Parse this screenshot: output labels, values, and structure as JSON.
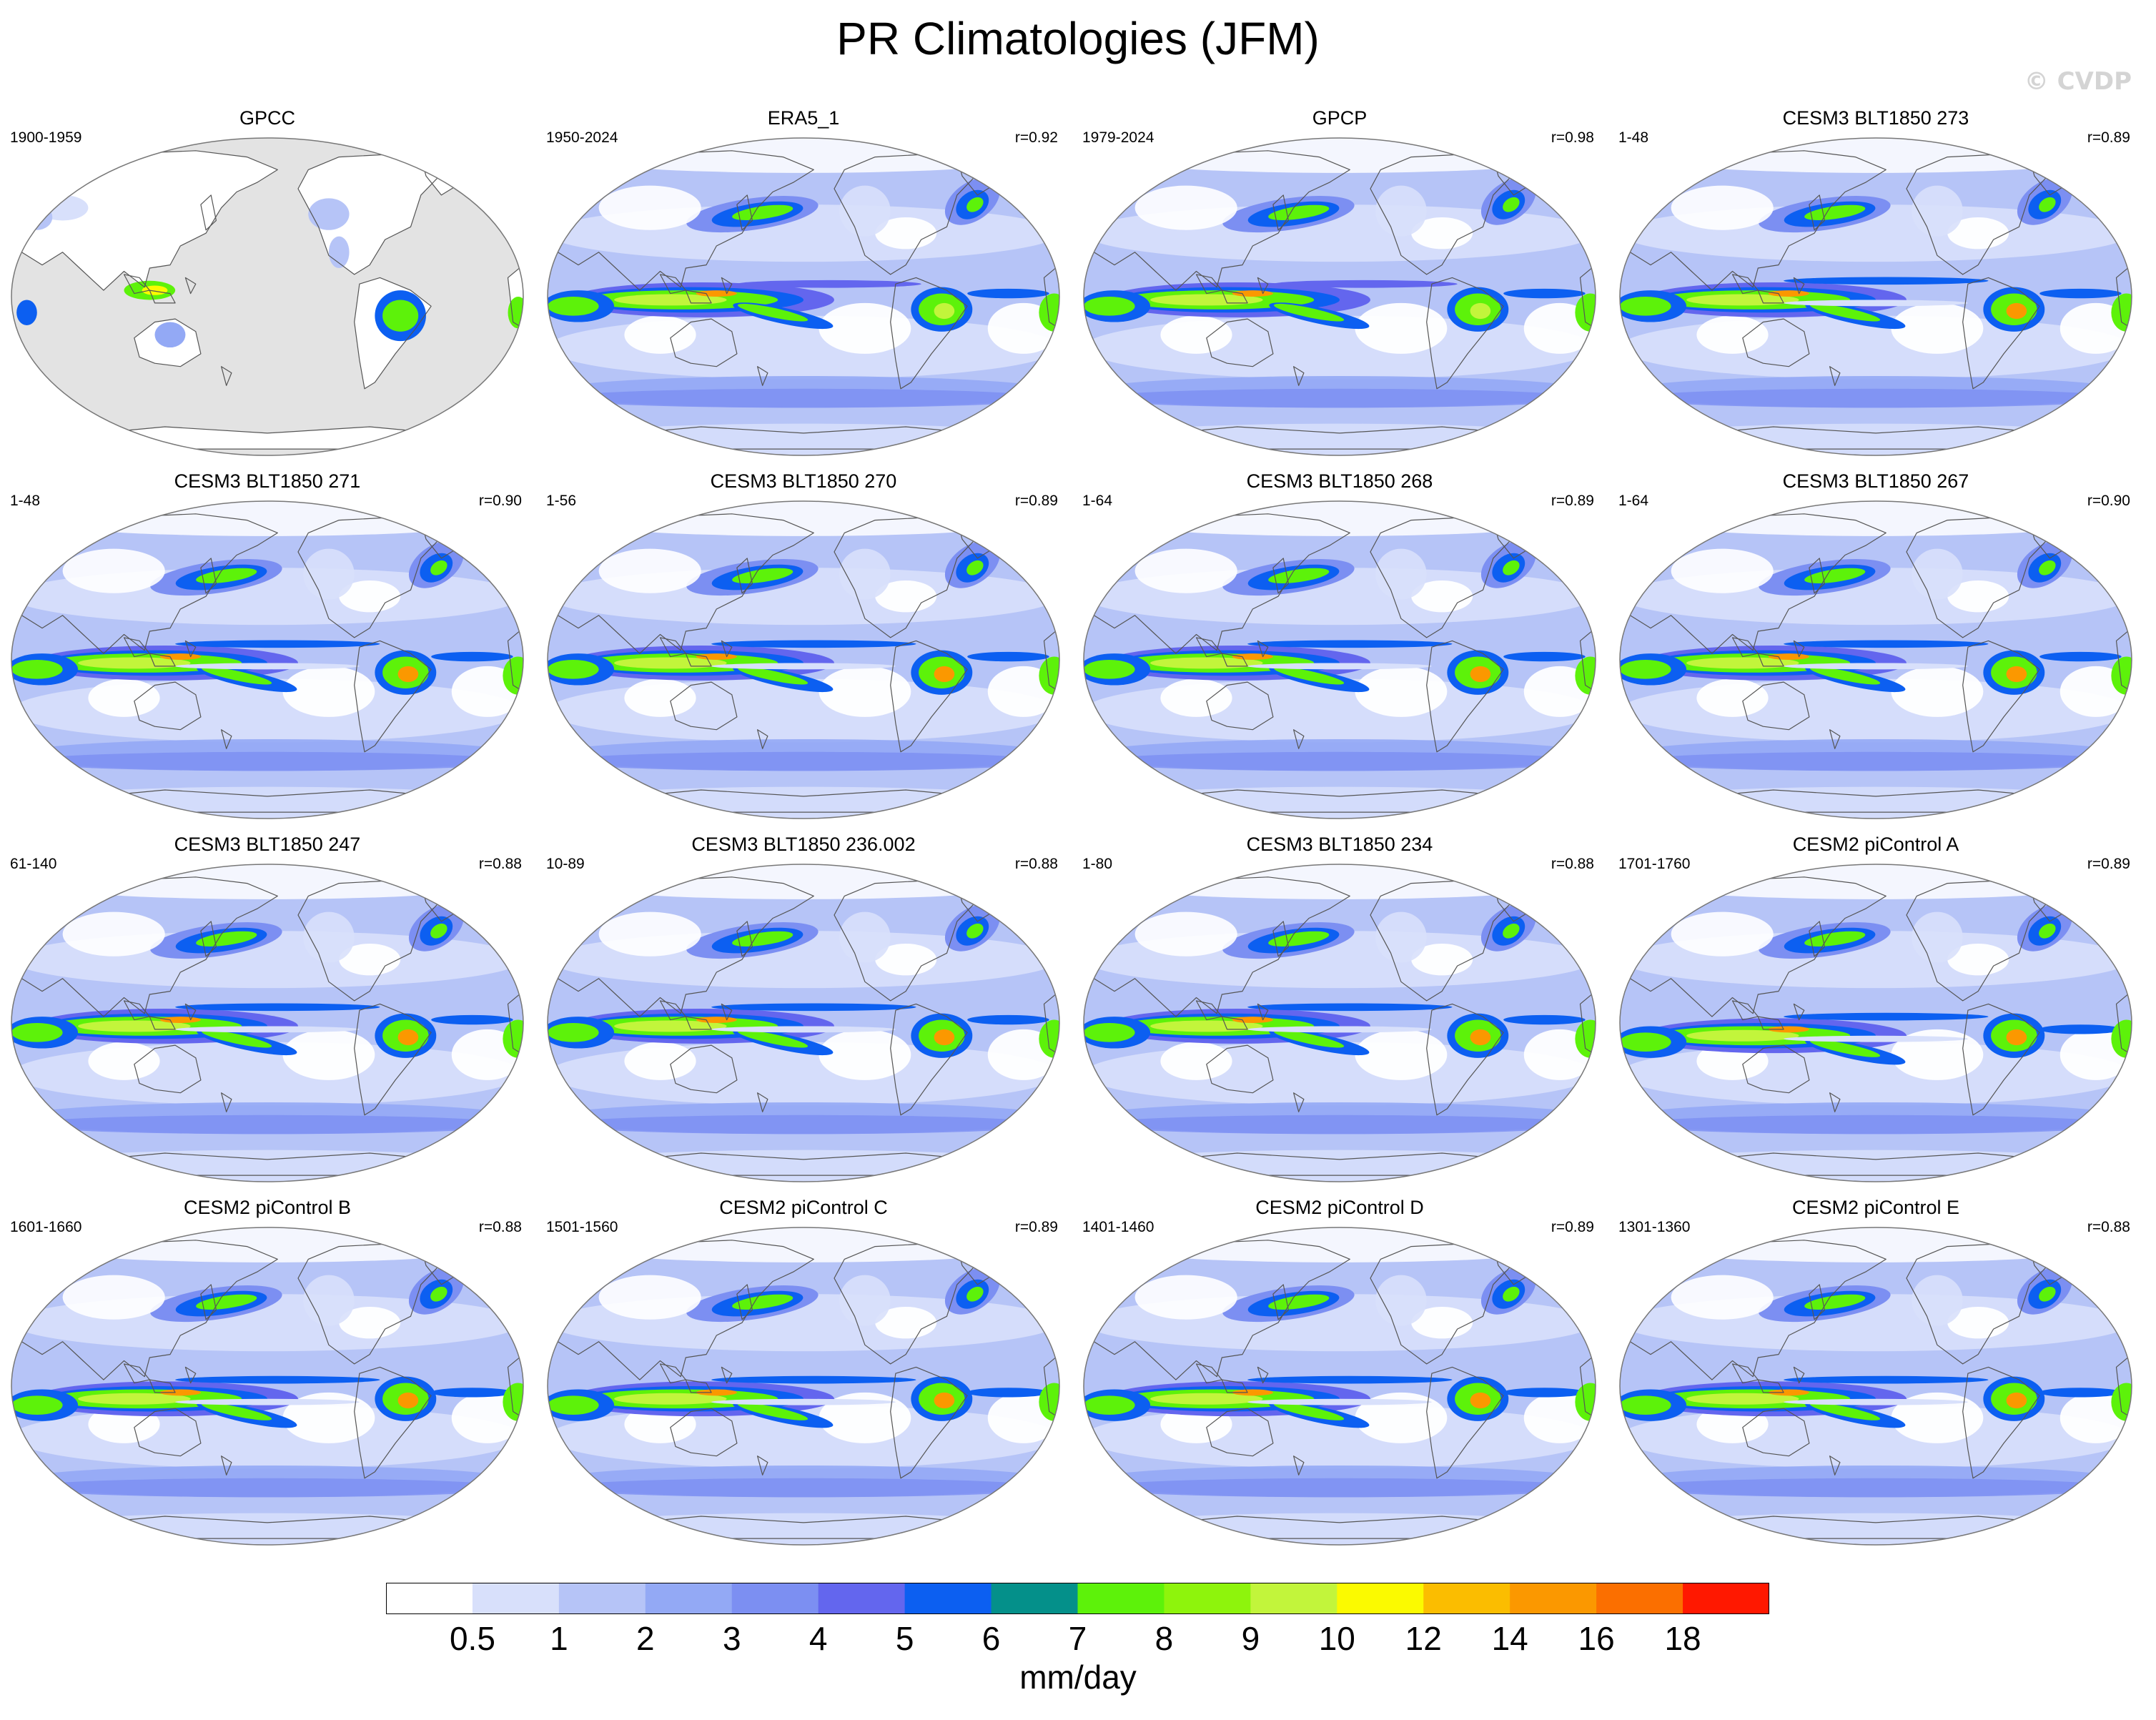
{
  "title": "PR Climatologies (JFM)",
  "watermark": "© CVDP",
  "colorbar": {
    "colors": [
      "#ffffff",
      "#d8e0fb",
      "#b6c4f7",
      "#93a9f5",
      "#7c8ff2",
      "#6366ee",
      "#0c5ff1",
      "#04908a",
      "#5df20a",
      "#8ef40c",
      "#c2f53b",
      "#fbfa00",
      "#fbbd00",
      "#fb9800",
      "#fb6f00",
      "#ff1800"
    ],
    "ticks": [
      "0.5",
      "1",
      "2",
      "3",
      "4",
      "5",
      "6",
      "7",
      "8",
      "9",
      "10",
      "12",
      "14",
      "16",
      "18"
    ],
    "units": "mm/day"
  },
  "panels": [
    {
      "title": "GPCC",
      "left": "1900-1959",
      "right": "",
      "variant": "obs-land"
    },
    {
      "title": "ERA5_1",
      "left": "1950-2024",
      "right": "r=0.92",
      "variant": "obs"
    },
    {
      "title": "GPCP",
      "left": "1979-2024",
      "right": "r=0.98",
      "variant": "obs"
    },
    {
      "title": "CESM3 BLT1850 273",
      "left": "1-48",
      "right": "r=0.89",
      "variant": "cesm3"
    },
    {
      "title": "CESM3 BLT1850 271",
      "left": "1-48",
      "right": "r=0.90",
      "variant": "cesm3"
    },
    {
      "title": "CESM3 BLT1850 270",
      "left": "1-56",
      "right": "r=0.89",
      "variant": "cesm3"
    },
    {
      "title": "CESM3 BLT1850 268",
      "left": "1-64",
      "right": "r=0.89",
      "variant": "cesm3"
    },
    {
      "title": "CESM3 BLT1850 267",
      "left": "1-64",
      "right": "r=0.90",
      "variant": "cesm3"
    },
    {
      "title": "CESM3 BLT1850 247",
      "left": "61-140",
      "right": "r=0.88",
      "variant": "cesm3"
    },
    {
      "title": "CESM3 BLT1850 236.002",
      "left": "10-89",
      "right": "r=0.88",
      "variant": "cesm3"
    },
    {
      "title": "CESM3 BLT1850 234",
      "left": "1-80",
      "right": "r=0.88",
      "variant": "cesm3"
    },
    {
      "title": "CESM2 piControl A",
      "left": "1701-1760",
      "right": "r=0.89",
      "variant": "cesm2"
    },
    {
      "title": "CESM2 piControl B",
      "left": "1601-1660",
      "right": "r=0.88",
      "variant": "cesm2"
    },
    {
      "title": "CESM2 piControl C",
      "left": "1501-1560",
      "right": "r=0.89",
      "variant": "cesm2"
    },
    {
      "title": "CESM2 piControl D",
      "left": "1401-1460",
      "right": "r=0.89",
      "variant": "cesm2"
    },
    {
      "title": "CESM2 piControl E",
      "left": "1301-1360",
      "right": "r=0.88",
      "variant": "cesm2"
    }
  ]
}
